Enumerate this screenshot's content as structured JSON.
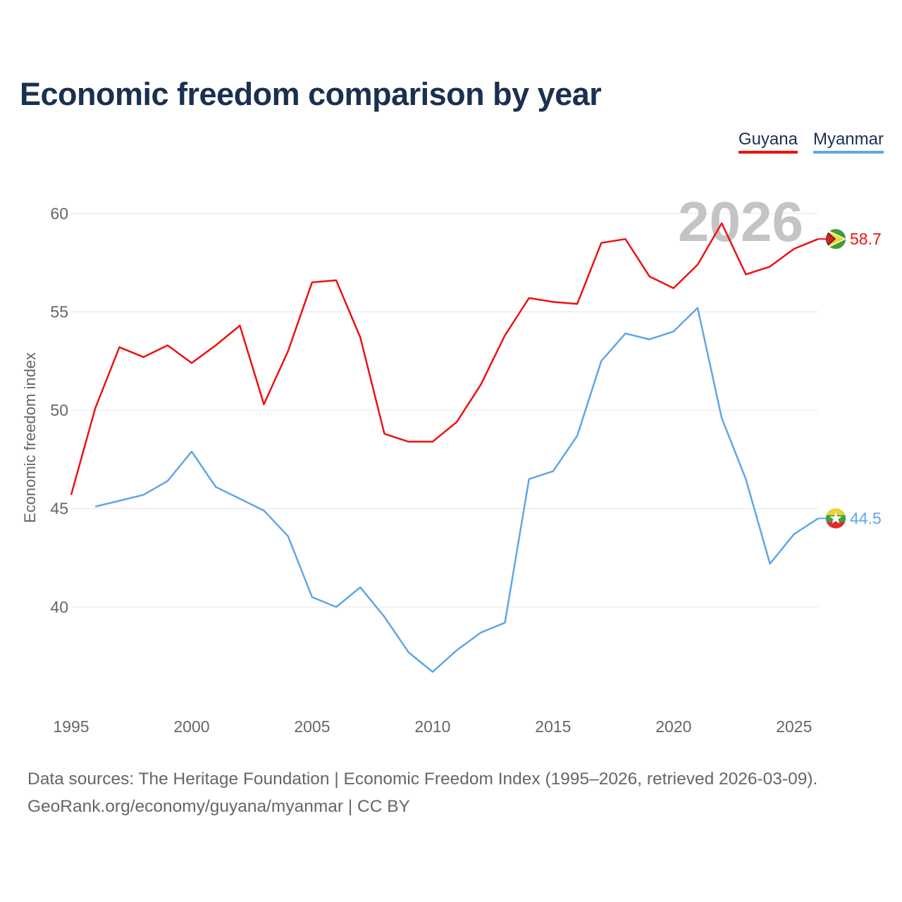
{
  "title": "Economic freedom comparison by year",
  "legend": {
    "guyana": "Guyana",
    "myanmar": "Myanmar"
  },
  "colors": {
    "guyana": "#ee1111",
    "myanmar": "#5fa6e8",
    "title": "#1a3050",
    "year_watermark": "#c4c4c4"
  },
  "icons": {
    "guyana": "guyana-flag-icon",
    "myanmar": "myanmar-flag-icon"
  },
  "chart_data": {
    "type": "line",
    "title": "Economic freedom comparison by year",
    "xlabel": "",
    "ylabel": "Economic freedom index",
    "xlim": [
      1995,
      2026
    ],
    "ylim": [
      35,
      62
    ],
    "x_ticks": [
      1995,
      2000,
      2005,
      2010,
      2015,
      2020,
      2025
    ],
    "y_ticks": [
      40,
      45,
      50,
      55,
      60
    ],
    "grid": true,
    "year_label": "2026",
    "series": [
      {
        "name": "Guyana",
        "color": "#ee1111",
        "end_label": "58.7",
        "points": [
          [
            1995,
            45.7
          ],
          [
            1996,
            50.1
          ],
          [
            1997,
            53.2
          ],
          [
            1998,
            52.7
          ],
          [
            1999,
            53.3
          ],
          [
            2000,
            52.4
          ],
          [
            2001,
            53.3
          ],
          [
            2002,
            54.3
          ],
          [
            2003,
            50.3
          ],
          [
            2004,
            53.0
          ],
          [
            2005,
            56.5
          ],
          [
            2006,
            56.6
          ],
          [
            2007,
            53.7
          ],
          [
            2008,
            48.8
          ],
          [
            2009,
            48.4
          ],
          [
            2010,
            48.4
          ],
          [
            2011,
            49.4
          ],
          [
            2012,
            51.3
          ],
          [
            2013,
            53.8
          ],
          [
            2014,
            55.7
          ],
          [
            2015,
            55.5
          ],
          [
            2016,
            55.4
          ],
          [
            2017,
            58.5
          ],
          [
            2018,
            58.7
          ],
          [
            2019,
            56.8
          ],
          [
            2020,
            56.2
          ],
          [
            2021,
            57.4
          ],
          [
            2022,
            59.5
          ],
          [
            2023,
            56.9
          ],
          [
            2024,
            57.3
          ],
          [
            2025,
            58.2
          ],
          [
            2026,
            58.7
          ]
        ]
      },
      {
        "name": "Myanmar",
        "color": "#5fa6e8",
        "end_label": "44.5",
        "points": [
          [
            1996,
            45.1
          ],
          [
            1997,
            45.4
          ],
          [
            1998,
            45.7
          ],
          [
            1999,
            46.4
          ],
          [
            2000,
            47.9
          ],
          [
            2001,
            46.1
          ],
          [
            2002,
            45.5
          ],
          [
            2003,
            44.9
          ],
          [
            2004,
            43.6
          ],
          [
            2005,
            40.5
          ],
          [
            2006,
            40.0
          ],
          [
            2007,
            41.0
          ],
          [
            2008,
            39.5
          ],
          [
            2009,
            37.7
          ],
          [
            2010,
            36.7
          ],
          [
            2011,
            37.8
          ],
          [
            2012,
            38.7
          ],
          [
            2013,
            39.2
          ],
          [
            2014,
            46.5
          ],
          [
            2015,
            46.9
          ],
          [
            2016,
            48.7
          ],
          [
            2017,
            52.5
          ],
          [
            2018,
            53.9
          ],
          [
            2019,
            53.6
          ],
          [
            2020,
            54.0
          ],
          [
            2021,
            55.2
          ],
          [
            2022,
            49.6
          ],
          [
            2023,
            46.5
          ],
          [
            2024,
            42.2
          ],
          [
            2025,
            43.7
          ],
          [
            2026,
            44.5
          ]
        ]
      }
    ]
  },
  "footer": {
    "line1": "Data sources: The Heritage Foundation | Economic Freedom Index (1995–2026, retrieved 2026-03-09).",
    "line2": "GeoRank.org/economy/guyana/myanmar | CC BY"
  }
}
